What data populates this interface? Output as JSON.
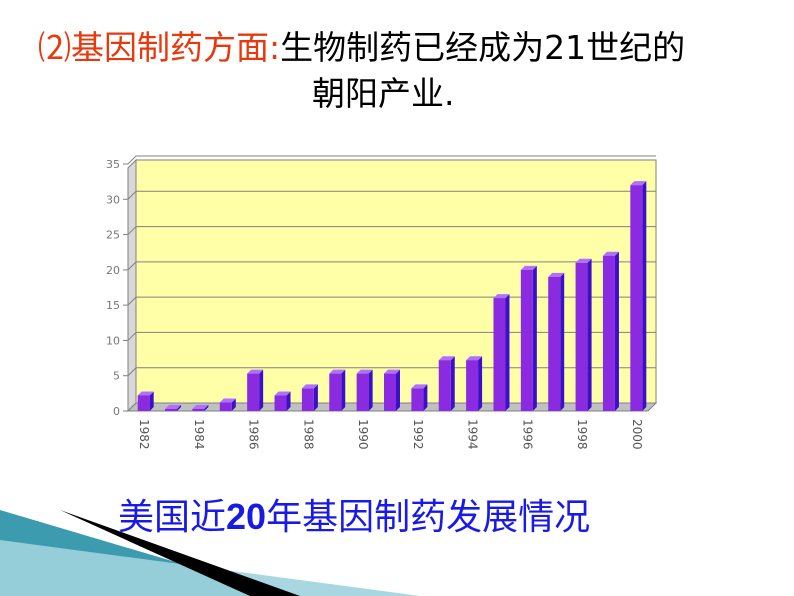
{
  "header": {
    "label": "⑵基因制药方面",
    "colon": ":",
    "line1": "生物制药已经成为21世纪的",
    "line2": "朝阳产业."
  },
  "caption": {
    "prefix": "美国近",
    "number": "20",
    "suffix": "年基因制药发展情况"
  },
  "colors": {
    "heading_accent": "#e8380d",
    "caption": "#1a1ae6",
    "plot_background": "#ffffa8",
    "bar_front": "#8a2be2",
    "bar_side": "#3a10c8",
    "bar_top": "#b070ff",
    "decor_teal": "#1a8aa0",
    "decor_black": "#000000"
  },
  "chart_data": {
    "type": "bar",
    "title": "",
    "xlabel": "",
    "ylabel": "",
    "categories": [
      "1982",
      "1983",
      "1984",
      "1985",
      "1986",
      "1987",
      "1988",
      "1989",
      "1990",
      "1991",
      "1992",
      "1993",
      "1994",
      "1995",
      "1996",
      "1997",
      "1998",
      "1999",
      "2000"
    ],
    "x_tick_labels": [
      "1982",
      "1984",
      "1986",
      "1988",
      "1990",
      "1992",
      "1994",
      "1996",
      "1998",
      "2000"
    ],
    "values": [
      2.2,
      0.3,
      0.3,
      1.2,
      5.3,
      2.2,
      3.2,
      5.3,
      5.3,
      5.3,
      3.2,
      7.2,
      7.2,
      16,
      20,
      19,
      21,
      22,
      32
    ],
    "ylim": [
      0,
      35
    ],
    "yticks": [
      0,
      5,
      10,
      15,
      20,
      25,
      30,
      35
    ],
    "grid": true,
    "legend": "none"
  }
}
